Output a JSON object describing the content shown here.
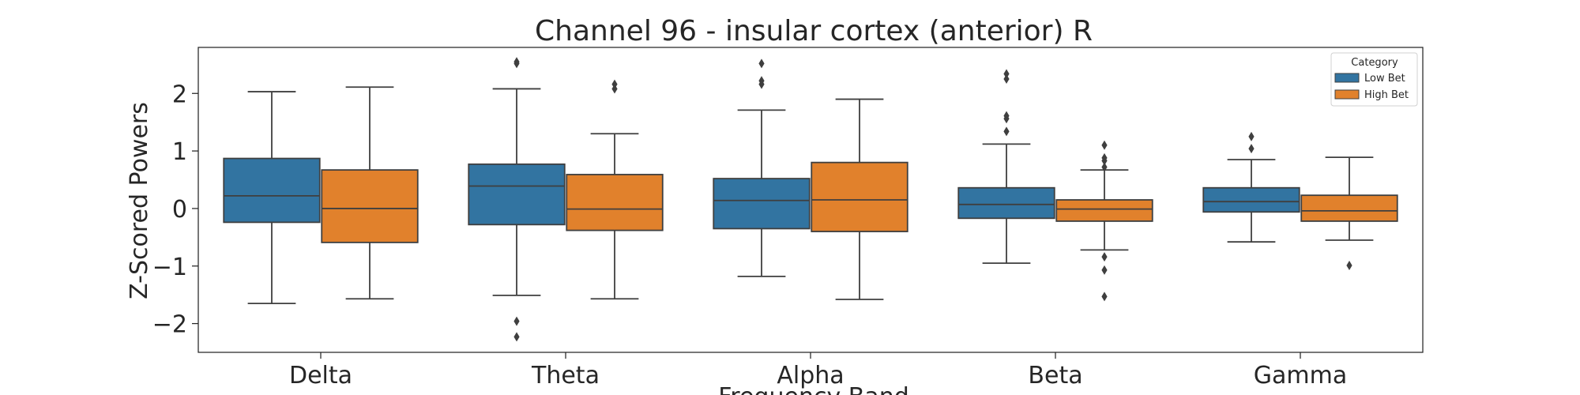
{
  "chart_data": {
    "type": "boxplot",
    "title": "Channel 96 - insular cortex (anterior) R",
    "xlabel": "Frequency Band",
    "ylabel": "Z-Scored Powers",
    "categories": [
      "Delta",
      "Theta",
      "Alpha",
      "Beta",
      "Gamma"
    ],
    "ylim": [
      -2.5,
      2.8
    ],
    "yticks": [
      2,
      1,
      0,
      -1,
      -2
    ],
    "ytick_labels": [
      "2",
      "1",
      "0",
      "−1",
      "−2"
    ],
    "grid": false,
    "legend": {
      "title": "Category",
      "placement": "top-right"
    },
    "series": [
      {
        "name": "Low Bet",
        "color": "#3274a1",
        "boxes": [
          {
            "whislo": -1.65,
            "q1": -0.24,
            "med": 0.22,
            "q3": 0.87,
            "whishi": 2.03,
            "fliers": []
          },
          {
            "whislo": -1.51,
            "q1": -0.28,
            "med": 0.39,
            "q3": 0.77,
            "whishi": 2.08,
            "fliers": [
              2.55,
              2.52,
              -1.96,
              -2.23
            ]
          },
          {
            "whislo": -1.18,
            "q1": -0.35,
            "med": 0.14,
            "q3": 0.52,
            "whishi": 1.71,
            "fliers": [
              2.52,
              2.22,
              2.16
            ]
          },
          {
            "whislo": -0.95,
            "q1": -0.17,
            "med": 0.07,
            "q3": 0.36,
            "whishi": 1.12,
            "fliers": [
              2.34,
              2.25,
              1.61,
              1.56,
              1.34
            ]
          },
          {
            "whislo": -0.58,
            "q1": -0.06,
            "med": 0.12,
            "q3": 0.36,
            "whishi": 0.85,
            "fliers": [
              1.25,
              1.04
            ]
          }
        ]
      },
      {
        "name": "High Bet",
        "color": "#e1812c",
        "boxes": [
          {
            "whislo": -1.57,
            "q1": -0.59,
            "med": 0.0,
            "q3": 0.67,
            "whishi": 2.11,
            "fliers": []
          },
          {
            "whislo": -1.57,
            "q1": -0.38,
            "med": -0.01,
            "q3": 0.59,
            "whishi": 1.3,
            "fliers": [
              2.16,
              2.08
            ]
          },
          {
            "whislo": -1.58,
            "q1": -0.4,
            "med": 0.15,
            "q3": 0.8,
            "whishi": 1.9,
            "fliers": []
          },
          {
            "whislo": -0.72,
            "q1": -0.22,
            "med": -0.01,
            "q3": 0.15,
            "whishi": 0.67,
            "fliers": [
              1.1,
              0.88,
              0.83,
              0.72,
              -0.84,
              -1.07,
              -1.53
            ]
          },
          {
            "whislo": -0.55,
            "q1": -0.22,
            "med": -0.04,
            "q3": 0.23,
            "whishi": 0.89,
            "fliers": [
              -0.99
            ]
          }
        ]
      }
    ]
  }
}
